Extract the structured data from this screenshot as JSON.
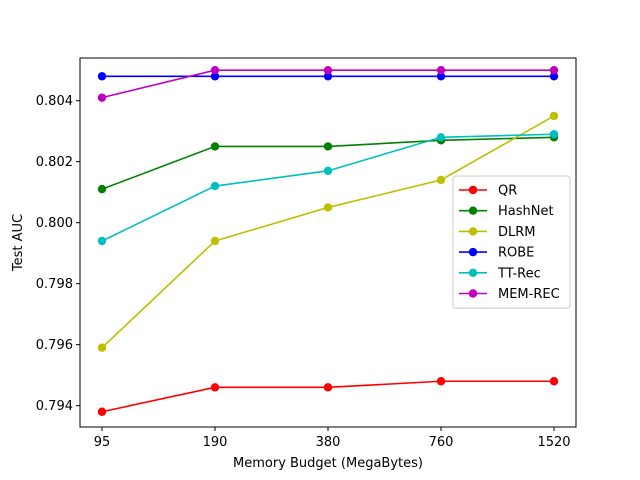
{
  "chart_data": {
    "type": "line",
    "xlabel": "Memory Budget (MegaBytes)",
    "ylabel": "Test AUC",
    "categories": [
      "95",
      "190",
      "380",
      "760",
      "1520"
    ],
    "ylim": [
      0.7933,
      0.8054
    ],
    "yticks": [
      "0.794",
      "0.796",
      "0.798",
      "0.800",
      "0.802",
      "0.804"
    ],
    "grid": false,
    "legend_position": "center-right",
    "series": [
      {
        "name": "QR",
        "color": "#ff0000",
        "values": [
          0.7938,
          0.7946,
          0.7946,
          0.7948,
          0.7948
        ]
      },
      {
        "name": "HashNet",
        "color": "#008000",
        "values": [
          0.8011,
          0.8025,
          0.8025,
          0.8027,
          0.8028
        ]
      },
      {
        "name": "DLRM",
        "color": "#bfbf00",
        "values": [
          0.7959,
          0.7994,
          0.8005,
          0.8014,
          0.8035
        ]
      },
      {
        "name": "ROBE",
        "color": "#0000ff",
        "values": [
          0.8048,
          0.8048,
          0.8048,
          0.8048,
          0.8048
        ]
      },
      {
        "name": "TT-Rec",
        "color": "#00bfbf",
        "values": [
          0.7994,
          0.8012,
          0.8017,
          0.8028,
          0.8029
        ]
      },
      {
        "name": "MEM-REC",
        "color": "#bf00bf",
        "values": [
          0.8041,
          0.805,
          0.805,
          0.805,
          0.805
        ]
      }
    ]
  }
}
